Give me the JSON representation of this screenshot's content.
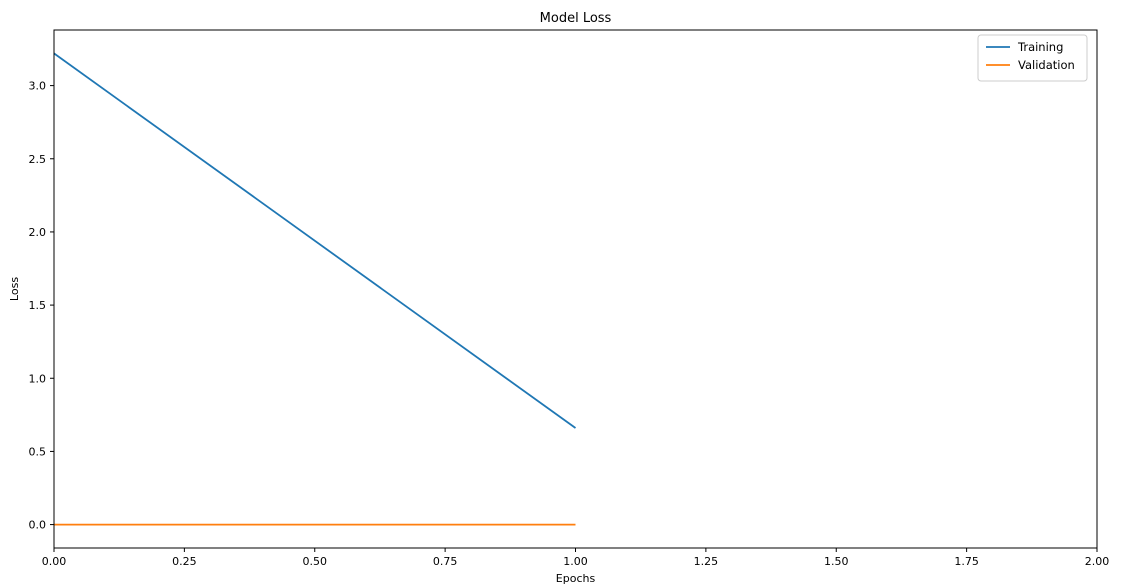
{
  "chart_data": {
    "type": "line",
    "title": "Model Loss",
    "xlabel": "Epochs",
    "ylabel": "Loss",
    "xlim": [
      0,
      2
    ],
    "ylim": [
      -0.16,
      3.38
    ],
    "x_ticks": [
      0,
      0.25,
      0.5,
      0.75,
      1.0,
      1.25,
      1.5,
      1.75,
      2.0
    ],
    "x_tick_labels": [
      "0.00",
      "0.25",
      "0.50",
      "0.75",
      "1.00",
      "1.25",
      "1.50",
      "1.75",
      "2.00"
    ],
    "y_ticks": [
      0,
      0.5,
      1.0,
      1.5,
      2.0,
      2.5,
      3.0
    ],
    "y_tick_labels": [
      "0.0",
      "0.5",
      "1.0",
      "1.5",
      "2.0",
      "2.5",
      "3.0"
    ],
    "grid": false,
    "legend_position": "top-right",
    "series": [
      {
        "name": "Training",
        "color": "#1f77b4",
        "x": [
          0,
          1
        ],
        "y": [
          3.22,
          0.66
        ]
      },
      {
        "name": "Validation",
        "color": "#ff7f0e",
        "x": [
          0,
          1
        ],
        "y": [
          0.0,
          0.0
        ]
      }
    ]
  }
}
